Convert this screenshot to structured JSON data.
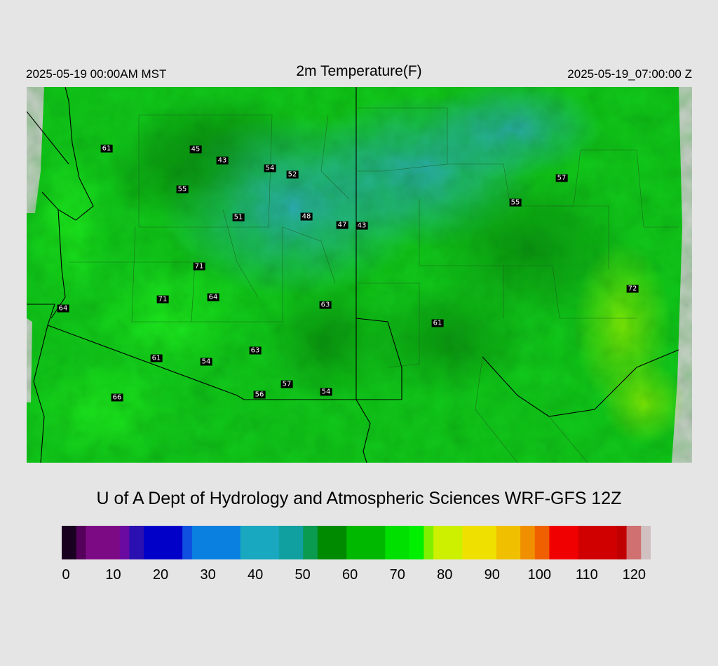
{
  "header": {
    "left": "2025-05-19 00:00AM MST",
    "title": "2m Temperature(F)",
    "right": "2025-05-19_07:00:00 Z"
  },
  "map": {
    "station_labels": [
      "61",
      "45",
      "43",
      "54",
      "52",
      "55",
      "51",
      "48",
      "47",
      "43",
      "57",
      "55",
      "71",
      "71",
      "64",
      "63",
      "61",
      "72",
      "64",
      "61",
      "54",
      "63",
      "57",
      "56",
      "54",
      "66"
    ]
  },
  "credit": "U of A Dept of Hydrology and Atmospheric Sciences WRF-GFS 12Z",
  "colorbar": {
    "ticks": [
      "0",
      "10",
      "20",
      "30",
      "40",
      "50",
      "60",
      "70",
      "80",
      "90",
      "100",
      "110",
      "120"
    ],
    "min": 0,
    "max": 122,
    "colors": [
      [
        0,
        "#1a0020"
      ],
      [
        3,
        "#55005a"
      ],
      [
        5,
        "#7d0a85"
      ],
      [
        12,
        "#6a0aa0"
      ],
      [
        14,
        "#2a10b0"
      ],
      [
        17,
        "#0000c8"
      ],
      [
        25,
        "#1050e0"
      ],
      [
        27,
        "#0a80e0"
      ],
      [
        37,
        "#18a8c0"
      ],
      [
        45,
        "#10a0a0"
      ],
      [
        50,
        "#0a9a50"
      ],
      [
        53,
        "#008a00"
      ],
      [
        59,
        "#00b800"
      ],
      [
        67,
        "#00e000"
      ],
      [
        72,
        "#00f000"
      ],
      [
        75,
        "#80f000"
      ],
      [
        77,
        "#ccf000"
      ],
      [
        83,
        "#f0e000"
      ],
      [
        90,
        "#f0c000"
      ],
      [
        95,
        "#f09000"
      ],
      [
        98,
        "#f06000"
      ],
      [
        101,
        "#f00000"
      ],
      [
        107,
        "#d00000"
      ],
      [
        115,
        "#c00000"
      ],
      [
        117,
        "#d07070"
      ],
      [
        120,
        "#d0c0c0"
      ],
      [
        122,
        "#d8d8d8"
      ]
    ]
  }
}
